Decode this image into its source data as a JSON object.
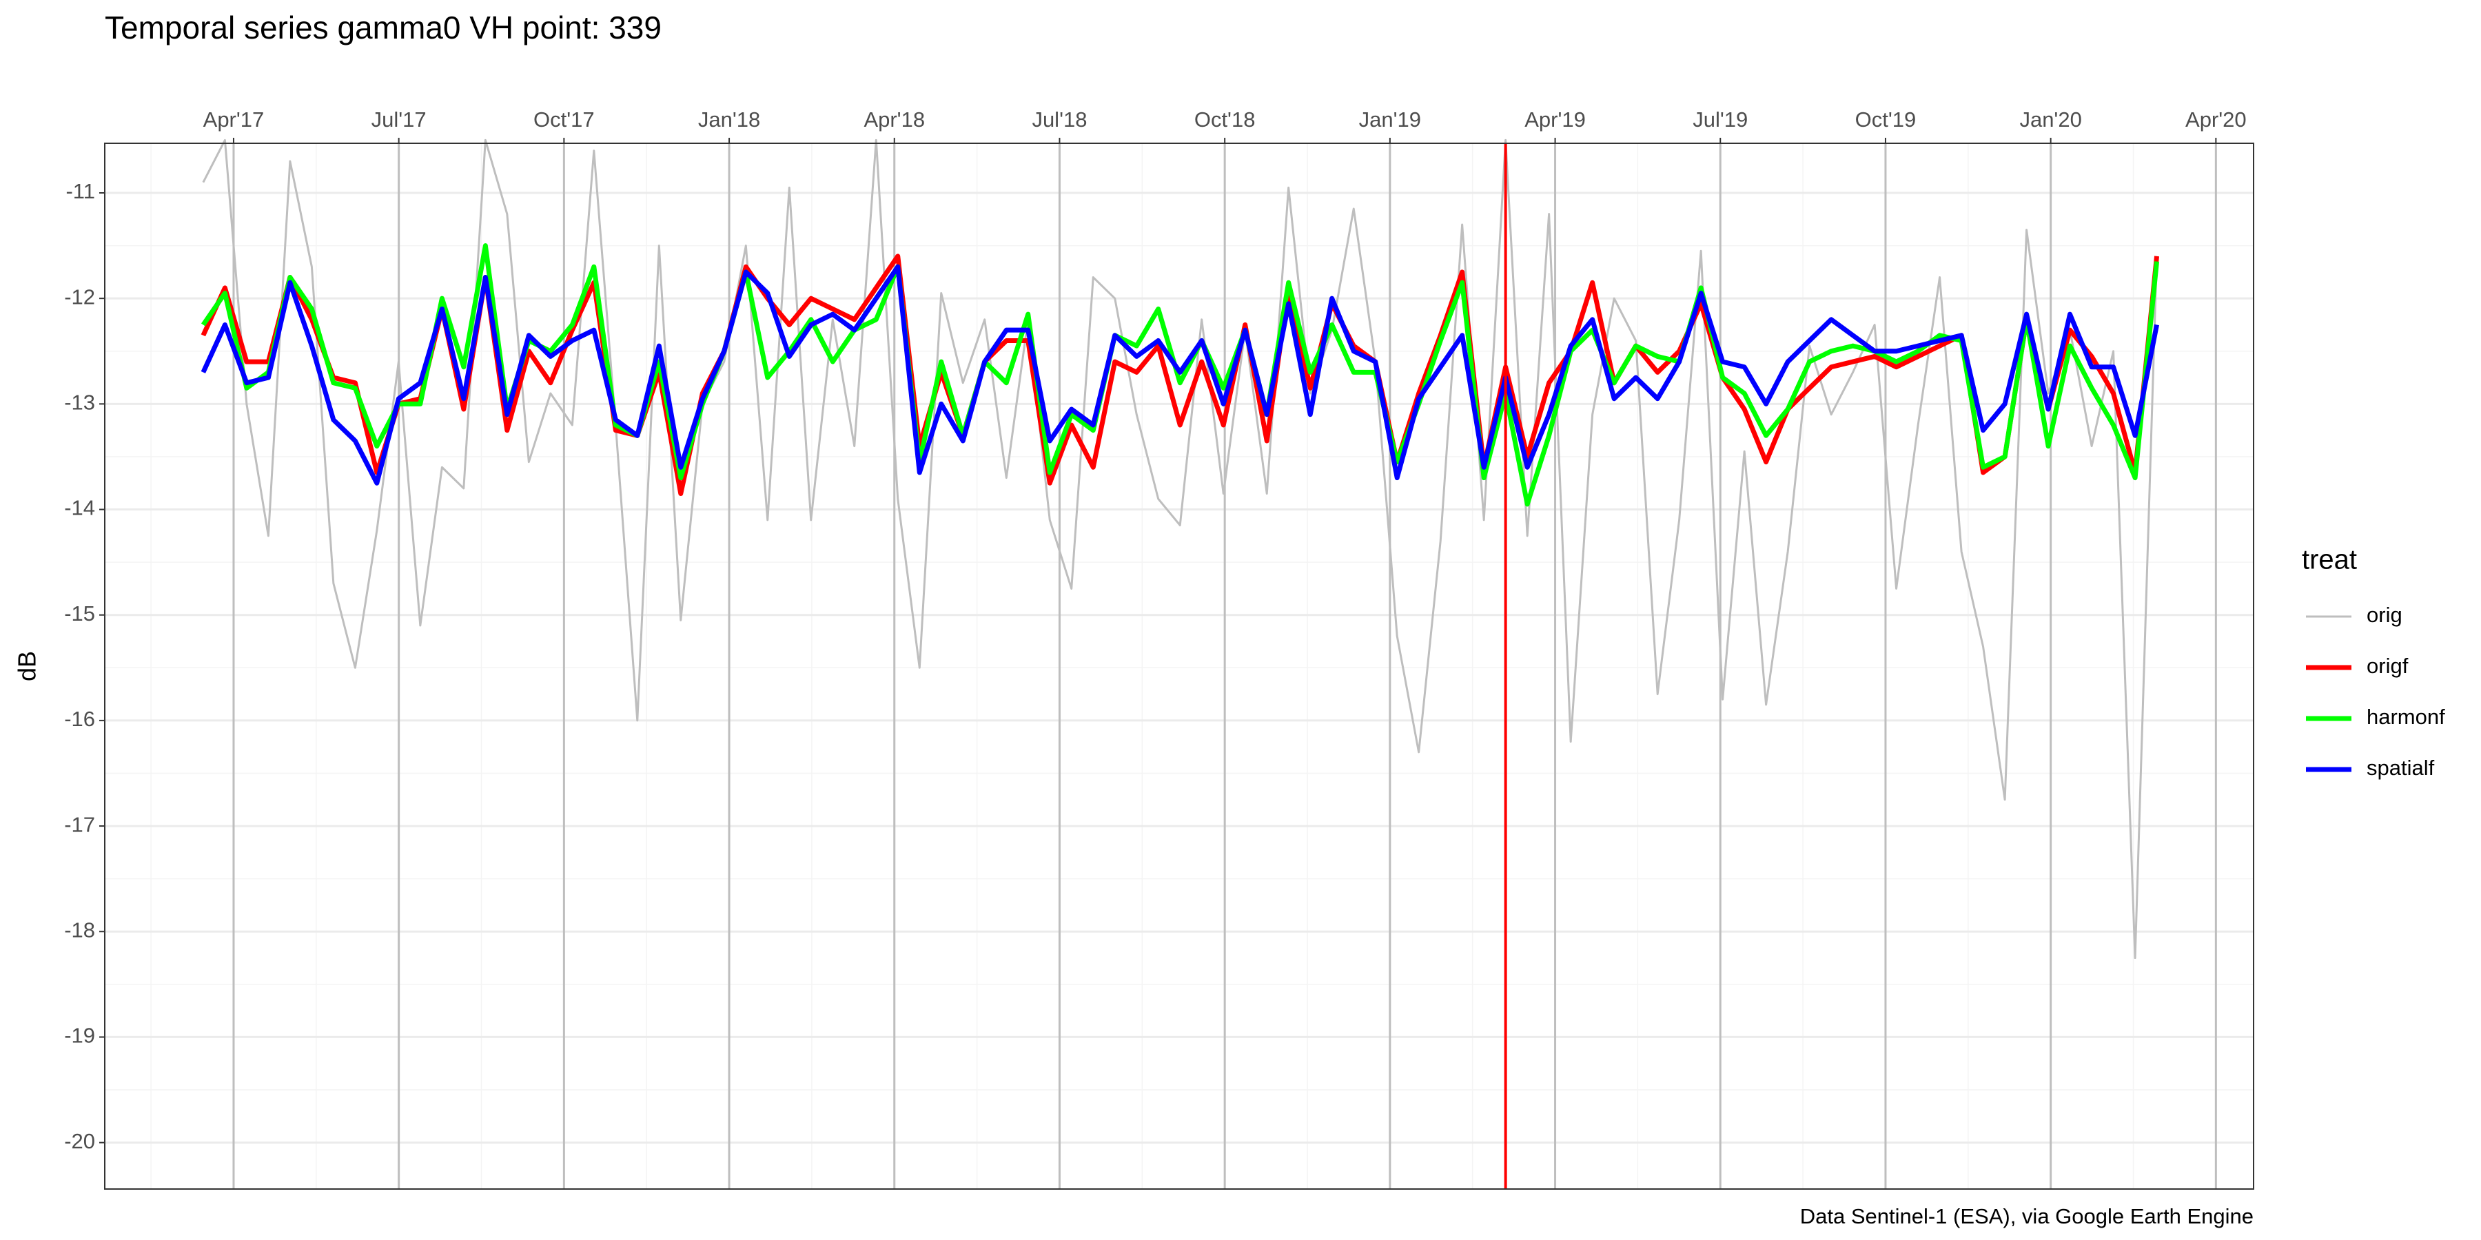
{
  "chart_data": {
    "type": "line",
    "title": "Temporal series gamma0 VH point: 339",
    "y_label": "dB",
    "caption": "Data Sentinel-1 (ESA), via Google Earth Engine",
    "legend_title": "treat",
    "legend_position": "right",
    "x_axis_position": "top",
    "grid": true,
    "minor_grid": true,
    "xgrid_color": "#bebebe",
    "x": [
      2017.204,
      2017.2369,
      2017.2697,
      2017.3026,
      2017.3354,
      2017.3683,
      2017.4011,
      2017.434,
      2017.4668,
      2017.4997,
      2017.5325,
      2017.5654,
      2017.5982,
      2017.6311,
      2017.6639,
      2017.6968,
      2017.7296,
      2017.7625,
      2017.7953,
      2017.8282,
      2017.861,
      2017.8939,
      2017.9267,
      2017.9596,
      2017.9924,
      2018.0253,
      2018.0581,
      2018.091,
      2018.1238,
      2018.1567,
      2018.1895,
      2018.2224,
      2018.2552,
      2018.2881,
      2018.3209,
      2018.3538,
      2018.3866,
      2018.4195,
      2018.4523,
      2018.4852,
      2018.518,
      2018.5509,
      2018.5837,
      2018.6166,
      2018.6494,
      2018.6823,
      2018.7151,
      2018.748,
      2018.7808,
      2018.8137,
      2018.8465,
      2018.8794,
      2018.9122,
      2018.9451,
      2018.9779,
      2019.0108,
      2019.0436,
      2019.0765,
      2019.1093,
      2019.1422,
      2019.175,
      2019.2079,
      2019.2407,
      2019.2736,
      2019.3064,
      2019.3393,
      2019.3721,
      2019.405,
      2019.4378,
      2019.4707,
      2019.5035,
      2019.5364,
      2019.5692,
      2019.6021,
      2019.6349,
      2019.6678,
      2019.7006,
      2019.7335,
      2019.7663,
      2019.7992,
      2019.832,
      2019.8649,
      2019.8977,
      2019.9306,
      2019.9634,
      2019.9963,
      2020.0291,
      2020.062,
      2020.0948,
      2020.1277,
      2020.1605
    ],
    "series": [
      {
        "name": "orig",
        "color": "#bebebe",
        "width": 3,
        "values": [
          -10.9,
          -10.5,
          -13.0,
          -14.25,
          -10.7,
          -11.7,
          -14.7,
          -15.5,
          -14.2,
          -12.6,
          -15.1,
          -13.6,
          -13.8,
          -10.5,
          -11.2,
          -13.55,
          -12.9,
          -13.2,
          -10.6,
          -13.2,
          -16.0,
          -11.5,
          -15.05,
          -13.0,
          -12.6,
          -11.5,
          -14.1,
          -10.95,
          -14.1,
          -12.2,
          -13.4,
          -10.5,
          -13.9,
          -15.5,
          -11.95,
          -12.8,
          -12.2,
          -13.7,
          -12.2,
          -14.1,
          -14.75,
          -11.8,
          -12.0,
          -13.1,
          -13.9,
          -14.15,
          -12.2,
          -13.85,
          -12.3,
          -13.85,
          -10.95,
          -12.9,
          -12.3,
          -11.15,
          -12.6,
          -15.2,
          -16.3,
          -14.3,
          -11.3,
          -14.1,
          -10.5,
          -14.25,
          -11.2,
          -16.2,
          -13.1,
          -12.0,
          -12.4,
          -15.75,
          -14.1,
          -11.55,
          -15.8,
          -13.45,
          -15.85,
          -14.4,
          -12.45,
          -13.1,
          -12.7,
          -12.25,
          -14.75,
          -13.2,
          -11.8,
          -14.4,
          -15.3,
          -16.75,
          -11.35,
          -12.9,
          -12.3,
          -13.4,
          -12.5,
          -18.25,
          -11.6
        ]
      },
      {
        "name": "origf",
        "color": "#ff0000",
        "width": 7,
        "values": [
          -12.35,
          -11.9,
          -12.6,
          -12.6,
          -11.8,
          -12.2,
          -12.75,
          -12.8,
          -13.65,
          -13.0,
          -12.95,
          -12.1,
          -13.05,
          -11.8,
          -13.25,
          -12.5,
          -12.8,
          -12.3,
          -11.85,
          -13.25,
          -13.3,
          -12.7,
          -13.85,
          -12.9,
          -12.5,
          -11.7,
          -12.0,
          -12.25,
          -12.0,
          -12.1,
          -12.2,
          -11.9,
          -11.6,
          -13.4,
          -12.7,
          -13.3,
          -12.6,
          -12.4,
          -12.4,
          -13.75,
          -13.2,
          -13.6,
          -12.6,
          -12.7,
          -12.45,
          -13.2,
          -12.6,
          -13.2,
          -12.25,
          -13.35,
          -11.9,
          -12.85,
          -12.05,
          -12.45,
          -12.6,
          -13.55,
          -12.9,
          -12.35,
          -11.75,
          -13.6,
          -12.65,
          -13.5,
          -12.8,
          -12.5,
          -11.85,
          -12.8,
          -12.45,
          -12.7,
          -12.5,
          -12.05,
          -12.75,
          -13.05,
          -13.55,
          -13.05,
          -12.85,
          -12.65,
          -12.6,
          -12.55,
          -12.65,
          -12.55,
          -12.45,
          -12.35,
          -13.65,
          -13.5,
          -12.2,
          -13.05,
          -12.3,
          -12.55,
          -12.9,
          -13.65,
          -11.6
        ]
      },
      {
        "name": "harmonf",
        "color": "#00ff00",
        "width": 7,
        "values": [
          -12.25,
          -11.95,
          -12.85,
          -12.7,
          -11.8,
          -12.1,
          -12.8,
          -12.85,
          -13.4,
          -13.0,
          -13.0,
          -12.0,
          -12.65,
          -11.5,
          -13.05,
          -12.4,
          -12.5,
          -12.25,
          -11.7,
          -13.2,
          -13.3,
          -12.6,
          -13.7,
          -13.0,
          -12.5,
          -11.75,
          -12.75,
          -12.5,
          -12.2,
          -12.6,
          -12.3,
          -12.2,
          -11.7,
          -13.55,
          -12.6,
          -13.3,
          -12.6,
          -12.8,
          -12.15,
          -13.65,
          -13.1,
          -13.25,
          -12.35,
          -12.45,
          -12.1,
          -12.8,
          -12.4,
          -12.85,
          -12.3,
          -13.1,
          -11.85,
          -12.7,
          -12.25,
          -12.7,
          -12.7,
          -13.55,
          -13.0,
          -12.4,
          -11.85,
          -13.7,
          -12.9,
          -13.95,
          -13.3,
          -12.5,
          -12.3,
          -12.8,
          -12.45,
          -12.55,
          -12.6,
          -11.9,
          -12.75,
          -12.9,
          -13.3,
          -13.05,
          -12.6,
          -12.5,
          -12.45,
          -12.5,
          -12.6,
          -12.5,
          -12.35,
          -12.4,
          -13.6,
          -13.5,
          -12.2,
          -13.4,
          -12.45,
          -12.85,
          -13.2,
          -13.7,
          -11.65
        ]
      },
      {
        "name": "spatialf",
        "color": "#0000ff",
        "width": 7,
        "values": [
          -12.7,
          -12.25,
          -12.8,
          -12.75,
          -11.85,
          -12.45,
          -13.15,
          -13.35,
          -13.75,
          -12.95,
          -12.8,
          -12.1,
          -12.95,
          -11.8,
          -13.1,
          -12.35,
          -12.55,
          -12.4,
          -12.3,
          -13.15,
          -13.3,
          -12.45,
          -13.6,
          -12.95,
          -12.5,
          -11.75,
          -11.95,
          -12.55,
          -12.25,
          -12.15,
          -12.3,
          -12.0,
          -11.7,
          -13.65,
          -13.0,
          -13.35,
          -12.6,
          -12.3,
          -12.3,
          -13.35,
          -13.05,
          -13.2,
          -12.35,
          -12.55,
          -12.4,
          -12.7,
          -12.4,
          -13.0,
          -12.3,
          -13.1,
          -12.05,
          -13.1,
          -12.0,
          -12.5,
          -12.6,
          -13.7,
          -12.95,
          -12.65,
          -12.35,
          -13.6,
          -12.75,
          -13.6,
          -13.1,
          -12.45,
          -12.2,
          -12.95,
          -12.75,
          -12.95,
          -12.6,
          -11.95,
          -12.6,
          -12.65,
          -13.0,
          -12.6,
          -12.4,
          -12.2,
          -12.35,
          -12.5,
          -12.5,
          -12.45,
          -12.4,
          -12.35,
          -13.25,
          -13.0,
          -12.15,
          -13.05,
          -12.15,
          -12.65,
          -12.65,
          -13.3,
          -12.25
        ]
      }
    ],
    "vlines": [
      {
        "x": 2019.175,
        "color": "#ff0000"
      }
    ],
    "xlim": [
      2017.055,
      2020.307
    ],
    "xticks": [
      {
        "value": 2017.25,
        "label": "Apr'17"
      },
      {
        "value": 2017.5,
        "label": "Jul'17"
      },
      {
        "value": 2017.75,
        "label": "Oct'17"
      },
      {
        "value": 2018.0,
        "label": "Jan'18"
      },
      {
        "value": 2018.25,
        "label": "Apr'18"
      },
      {
        "value": 2018.5,
        "label": "Jul'18"
      },
      {
        "value": 2018.75,
        "label": "Oct'18"
      },
      {
        "value": 2019.0,
        "label": "Jan'19"
      },
      {
        "value": 2019.25,
        "label": "Apr'19"
      },
      {
        "value": 2019.5,
        "label": "Jul'19"
      },
      {
        "value": 2019.75,
        "label": "Oct'19"
      },
      {
        "value": 2020.0,
        "label": "Jan'20"
      },
      {
        "value": 2020.25,
        "label": "Apr'20"
      }
    ],
    "ylim": [
      -20.44,
      -10.53
    ],
    "yticks": [
      -11,
      -12,
      -13,
      -14,
      -15,
      -16,
      -17,
      -18,
      -19,
      -20
    ]
  }
}
